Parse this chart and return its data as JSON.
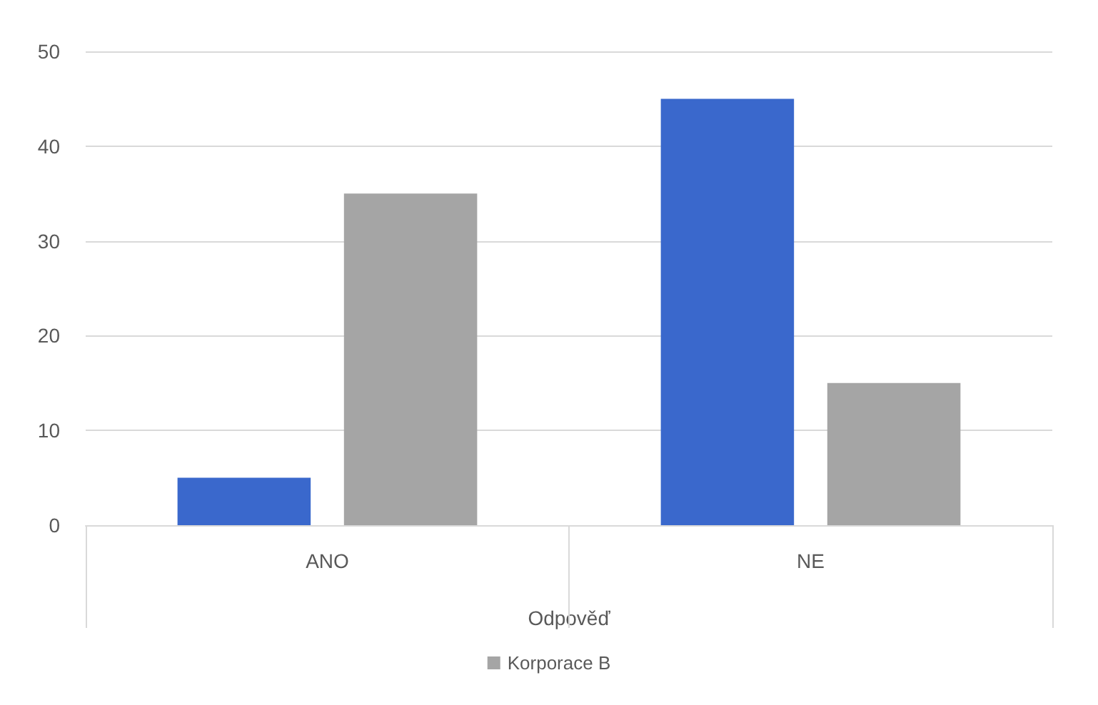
{
  "chart_data": {
    "type": "bar",
    "xlabel": "Odpověď",
    "categories": [
      "ANO",
      "NE"
    ],
    "series": [
      {
        "color": "#3a68cc",
        "values": [
          5,
          45
        ]
      },
      {
        "name": "Korporace B",
        "color": "#a5a5a5",
        "values": [
          35,
          15
        ]
      }
    ],
    "ylim": [
      0,
      50
    ],
    "yticks": [
      0,
      10,
      20,
      30,
      40,
      50
    ],
    "grid": "y",
    "legend": "bottom"
  }
}
